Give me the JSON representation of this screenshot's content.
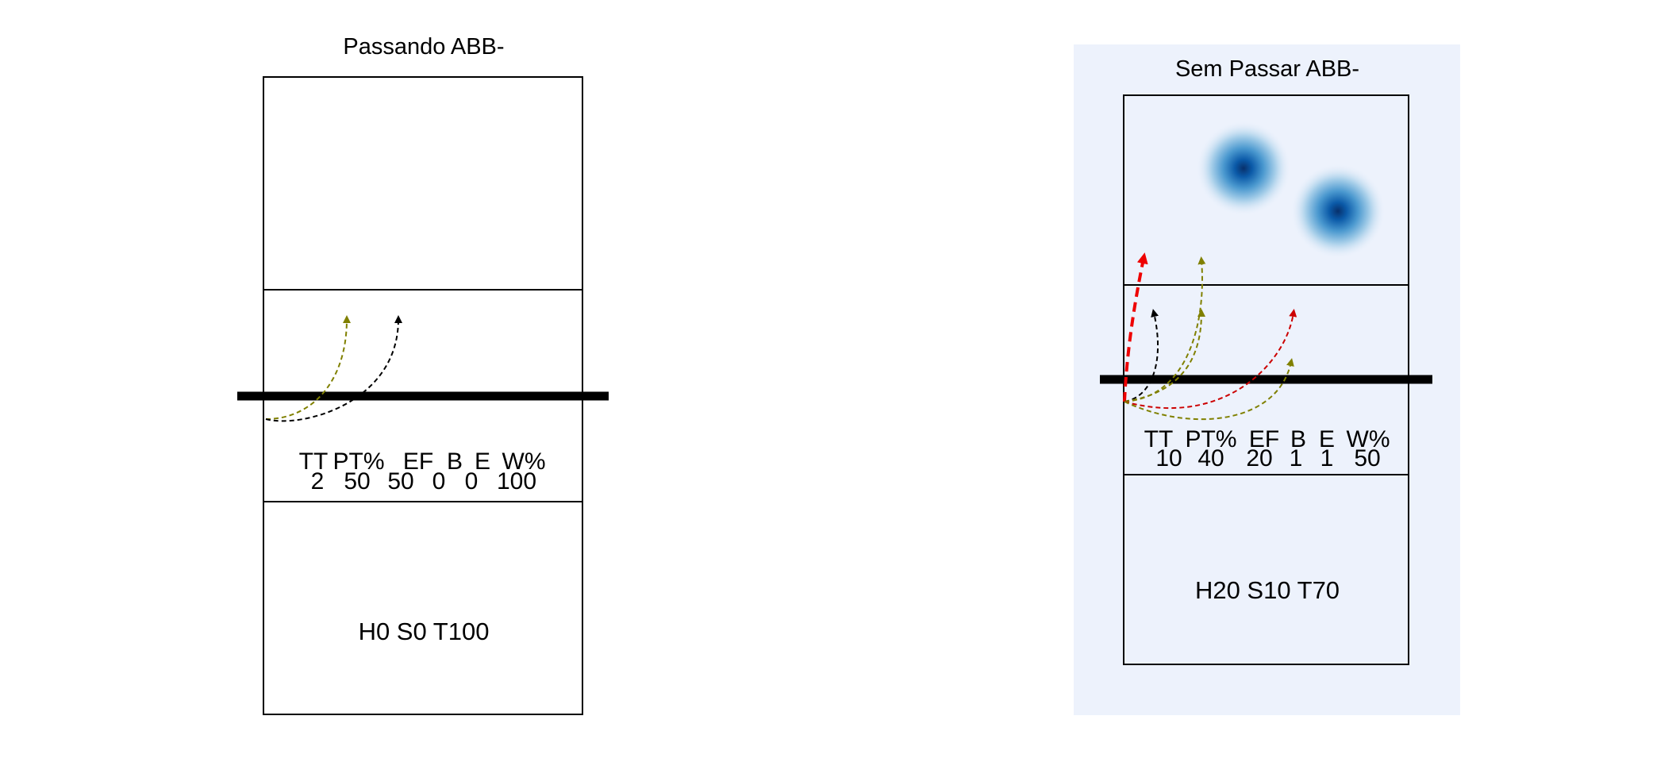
{
  "colors": {
    "panel_highlight_bg": "#edf2fc",
    "success": "#808000",
    "neutral": "#000000",
    "error": "#cc0000",
    "error_bold": "#ee0000",
    "heat": "#0b5aa8"
  },
  "chart_data": [
    {
      "type": "court-diagram",
      "title": "Passando ABB-",
      "stats": {
        "headers": [
          "TT",
          "PT%",
          "EF",
          "B",
          "E",
          "W%"
        ],
        "values": [
          "2",
          "50",
          "50",
          "0",
          "0",
          "100"
        ]
      },
      "zone_text": "H0 S0 T100",
      "trajectories": [
        {
          "outcome": "success",
          "color": "#808000"
        },
        {
          "outcome": "neutral",
          "color": "#000000"
        }
      ],
      "heat_spots": []
    },
    {
      "type": "court-diagram",
      "title": "Sem Passar ABB-",
      "highlighted": true,
      "stats": {
        "headers": [
          "TT",
          "PT%",
          "EF",
          "B",
          "E",
          "W%"
        ],
        "values": [
          "10",
          "40",
          "20",
          "1",
          "1",
          "50"
        ]
      },
      "zone_text": "H20 S10 T70",
      "trajectories": [
        {
          "outcome": "error",
          "color": "#ee0000",
          "bold": true
        },
        {
          "outcome": "success",
          "color": "#808000"
        },
        {
          "outcome": "neutral",
          "color": "#000000"
        },
        {
          "outcome": "success",
          "color": "#808000"
        },
        {
          "outcome": "error",
          "color": "#cc0000"
        },
        {
          "outcome": "success",
          "color": "#808000"
        }
      ],
      "heat_spots": [
        {
          "intensity": 1.0
        },
        {
          "intensity": 1.0
        }
      ]
    }
  ]
}
